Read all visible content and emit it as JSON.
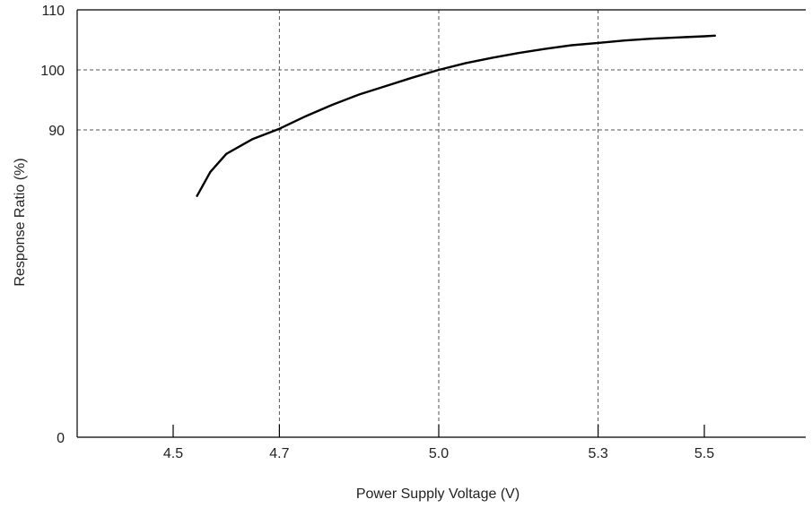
{
  "chart_data": {
    "type": "line",
    "title": "",
    "xlabel": "Power Supply Voltage (V)",
    "ylabel": "Response Ratio (%)",
    "x_ticks": [
      {
        "value": 4.5,
        "label": "4.5"
      },
      {
        "value": 4.7,
        "label": "4.7"
      },
      {
        "value": 5.0,
        "label": "5.0"
      },
      {
        "value": 5.3,
        "label": "5.3"
      },
      {
        "value": 5.5,
        "label": "5.5"
      }
    ],
    "y_ticks": [
      {
        "value": 0,
        "label": "0"
      },
      {
        "value": 90,
        "label": "90"
      },
      {
        "value": 100,
        "label": "100"
      },
      {
        "value": 110,
        "label": "110"
      }
    ],
    "grid": {
      "x_dashed_at": [
        4.7,
        5.0,
        5.3
      ],
      "y_dashed_at": [
        90,
        100
      ]
    },
    "y_axis_break": true,
    "line_color": "#000000",
    "grid_color": "#555555",
    "series": [
      {
        "x": [
          4.545,
          4.57,
          4.6,
          4.65,
          4.7,
          4.75,
          4.8,
          4.85,
          4.9,
          4.95,
          5.0,
          5.05,
          5.1,
          5.15,
          5.2,
          5.25,
          5.3,
          5.35,
          5.4,
          5.45,
          5.5,
          5.52
        ],
        "values": [
          79,
          83,
          86,
          88.5,
          90.2,
          92.3,
          94.2,
          95.9,
          97.3,
          98.7,
          100,
          101.1,
          102,
          102.8,
          103.5,
          104.1,
          104.5,
          104.9,
          105.2,
          105.4,
          105.6,
          105.7
        ]
      }
    ]
  }
}
